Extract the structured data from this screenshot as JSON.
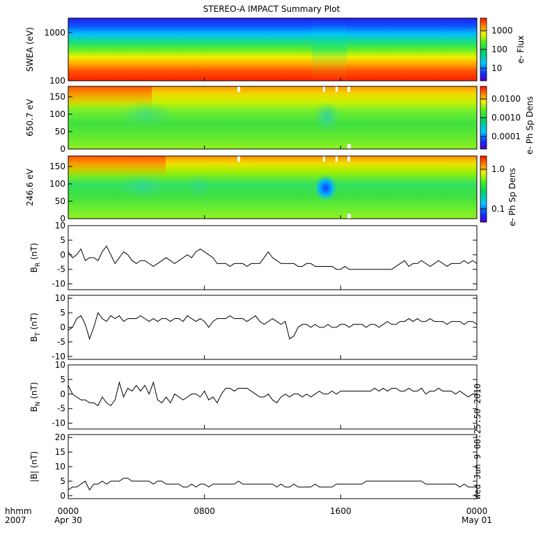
{
  "title": "STEREO-A IMPACT Summary Plot",
  "time_axis": {
    "row_label_1": "hhmm",
    "row_label_2": "2007",
    "ticks": [
      {
        "time": "0000",
        "date": "Apr 30",
        "hour": 0
      },
      {
        "time": "0800",
        "date": "",
        "hour": 8
      },
      {
        "time": "1600",
        "date": "",
        "hour": 16
      },
      {
        "time": "0000",
        "date": "May 01",
        "hour": 24
      }
    ],
    "range_hours": [
      0,
      24
    ]
  },
  "side_stamp": "Wed Jun 9 08:25:50 2010",
  "chart_data": [
    {
      "type": "heatmap",
      "id": "swea",
      "ylabel": "SWEA (eV)",
      "ylim": [
        100,
        2000
      ],
      "yscale": "log",
      "yticks": [
        "1000",
        "100"
      ],
      "colorbar": {
        "label": "e- Flux",
        "scale": "log",
        "ticks": [
          "1000",
          "100",
          "10"
        ]
      }
    },
    {
      "type": "heatmap",
      "id": "pad650",
      "ylabel": "650.7 eV",
      "ylim": [
        0,
        180
      ],
      "yticks": [
        "150",
        "100",
        "50",
        "0"
      ],
      "colorbar": {
        "label": "e- Ph Sp Dens",
        "scale": "log",
        "ticks": [
          "0.0100",
          "0.0010",
          "0.0001"
        ]
      }
    },
    {
      "type": "heatmap",
      "id": "pad246",
      "ylabel": "246.6 eV",
      "ylim": [
        0,
        180
      ],
      "yticks": [
        "150",
        "100",
        "50",
        "0"
      ],
      "colorbar": {
        "label": "e- Ph Sp Dens",
        "scale": "log",
        "ticks": [
          "1.0",
          "0.1"
        ]
      }
    },
    {
      "type": "line",
      "id": "br",
      "ylabel": "B",
      "ylabel_sub": "R",
      "ylabel_unit": "(nT)",
      "ylim": [
        -12,
        10
      ],
      "yticks": [
        "10",
        "5",
        "0",
        "-5",
        "-10"
      ],
      "x": [
        0,
        0.25,
        0.5,
        0.75,
        1,
        1.25,
        1.5,
        1.75,
        2,
        2.25,
        2.5,
        2.75,
        3,
        3.25,
        3.5,
        3.75,
        4,
        4.25,
        4.5,
        4.75,
        5,
        5.25,
        5.5,
        5.75,
        6,
        6.25,
        6.5,
        6.75,
        7,
        7.25,
        7.5,
        7.75,
        8,
        8.25,
        8.5,
        8.75,
        9,
        9.25,
        9.5,
        9.75,
        10,
        10.25,
        10.5,
        10.75,
        11,
        11.25,
        11.5,
        11.75,
        12,
        12.25,
        12.5,
        12.75,
        13,
        13.25,
        13.5,
        13.75,
        14,
        14.25,
        14.5,
        14.75,
        15,
        15.25,
        15.5,
        15.75,
        16,
        16.25,
        16.5,
        16.75,
        17,
        17.25,
        17.5,
        17.75,
        18,
        18.25,
        18.5,
        18.75,
        19,
        19.25,
        19.5,
        19.75,
        20,
        20.25,
        20.5,
        20.75,
        21,
        21.25,
        21.5,
        21.75,
        22,
        22.25,
        22.5,
        22.75,
        23,
        23.25,
        23.5,
        23.75,
        24
      ],
      "values": [
        1,
        -1,
        0,
        2,
        -2,
        -1,
        -1,
        -2,
        1,
        3,
        0,
        -3,
        -1,
        1,
        0,
        -2,
        -3,
        -2,
        -2,
        -3,
        -4,
        -3,
        -2,
        -1,
        -2,
        -3,
        -2,
        -1,
        0,
        -1,
        1,
        2,
        1,
        0,
        -1,
        -3,
        -3,
        -3,
        -4,
        -3,
        -3,
        -3,
        -4,
        -3,
        -3,
        -3,
        -1,
        1,
        -1,
        -2,
        -3,
        -3,
        -3,
        -3,
        -4,
        -4,
        -3,
        -3,
        -4,
        -4,
        -4,
        -4,
        -4,
        -5,
        -5,
        -4,
        -5,
        -5,
        -5,
        -5,
        -5,
        -5,
        -5,
        -5,
        -5,
        -5,
        -5,
        -4,
        -3,
        -2,
        -4,
        -3,
        -3,
        -2,
        -3,
        -4,
        -3,
        -2,
        -3,
        -4,
        -3,
        -3,
        -3,
        -2,
        -3,
        -2,
        -3
      ],
      "zero_line": false
    },
    {
      "type": "line",
      "id": "bt",
      "ylabel": "B",
      "ylabel_sub": "T",
      "ylabel_unit": "(nT)",
      "ylim": [
        -11,
        11
      ],
      "yticks": [
        "10",
        "5",
        "0",
        "-5",
        "-10"
      ],
      "x": [
        0,
        0.25,
        0.5,
        0.75,
        1,
        1.25,
        1.5,
        1.75,
        2,
        2.25,
        2.5,
        2.75,
        3,
        3.25,
        3.5,
        3.75,
        4,
        4.25,
        4.5,
        4.75,
        5,
        5.25,
        5.5,
        5.75,
        6,
        6.25,
        6.5,
        6.75,
        7,
        7.25,
        7.5,
        7.75,
        8,
        8.25,
        8.5,
        8.75,
        9,
        9.25,
        9.5,
        9.75,
        10,
        10.25,
        10.5,
        10.75,
        11,
        11.25,
        11.5,
        11.75,
        12,
        12.25,
        12.5,
        12.75,
        13,
        13.25,
        13.5,
        13.75,
        14,
        14.25,
        14.5,
        14.75,
        15,
        15.25,
        15.5,
        15.75,
        16,
        16.25,
        16.5,
        16.75,
        17,
        17.25,
        17.5,
        17.75,
        18,
        18.25,
        18.5,
        18.75,
        19,
        19.25,
        19.5,
        19.75,
        20,
        20.25,
        20.5,
        20.75,
        21,
        21.25,
        21.5,
        21.75,
        22,
        22.25,
        22.5,
        22.75,
        23,
        23.25,
        23.5,
        23.75,
        24
      ],
      "values": [
        -1,
        0,
        3,
        4,
        1,
        -4,
        0,
        5,
        3,
        2,
        4,
        3,
        4,
        2,
        3,
        3,
        3,
        4,
        3,
        2,
        3,
        2,
        3,
        3,
        2,
        3,
        3,
        2,
        4,
        3,
        2,
        3,
        2,
        0,
        2,
        3,
        3,
        3,
        4,
        3,
        3,
        3,
        2,
        3,
        4,
        2,
        1,
        2,
        3,
        2,
        1,
        2,
        -4,
        -3,
        0,
        1,
        1,
        0,
        1,
        0,
        0,
        1,
        0,
        0,
        1,
        1,
        0,
        1,
        1,
        1,
        0,
        1,
        1,
        0,
        1,
        2,
        1,
        1,
        2,
        2,
        3,
        2,
        3,
        2,
        2,
        3,
        2,
        2,
        2,
        1,
        2,
        2,
        2,
        1,
        2,
        2,
        1
      ],
      "zero_line": false
    },
    {
      "type": "line",
      "id": "bn",
      "ylabel": "B",
      "ylabel_sub": "N",
      "ylabel_unit": "(nT)",
      "ylim": [
        -12,
        10
      ],
      "yticks": [
        "10",
        "5",
        "0",
        "-5",
        "-10"
      ],
      "x": [
        0,
        0.25,
        0.5,
        0.75,
        1,
        1.25,
        1.5,
        1.75,
        2,
        2.25,
        2.5,
        2.75,
        3,
        3.25,
        3.5,
        3.75,
        4,
        4.25,
        4.5,
        4.75,
        5,
        5.25,
        5.5,
        5.75,
        6,
        6.25,
        6.5,
        6.75,
        7,
        7.25,
        7.5,
        7.75,
        8,
        8.25,
        8.5,
        8.75,
        9,
        9.25,
        9.5,
        9.75,
        10,
        10.25,
        10.5,
        10.75,
        11,
        11.25,
        11.5,
        11.75,
        12,
        12.25,
        12.5,
        12.75,
        13,
        13.25,
        13.5,
        13.75,
        14,
        14.25,
        14.5,
        14.75,
        15,
        15.25,
        15.5,
        15.75,
        16,
        16.25,
        16.5,
        16.75,
        17,
        17.25,
        17.5,
        17.75,
        18,
        18.25,
        18.5,
        18.75,
        19,
        19.25,
        19.5,
        19.75,
        20,
        20.25,
        20.5,
        20.75,
        21,
        21.25,
        21.5,
        21.75,
        22,
        22.25,
        22.5,
        22.75,
        23,
        23.25,
        23.5,
        23.75,
        24
      ],
      "values": [
        3,
        0,
        -1,
        -2,
        -2,
        -3,
        -3,
        -4,
        -1,
        -3,
        -4,
        -2,
        4,
        -1,
        2,
        1,
        3,
        1,
        3,
        0,
        4,
        -2,
        -3,
        -1,
        -3,
        0,
        -1,
        -2,
        -1,
        0,
        0,
        -1,
        1,
        -2,
        -1,
        -3,
        0,
        2,
        2,
        1,
        2,
        2,
        2,
        1,
        0,
        -1,
        -1,
        0,
        -2,
        -3,
        -1,
        0,
        -1,
        0,
        0,
        -1,
        0,
        -1,
        0,
        1,
        0,
        0,
        1,
        0,
        1,
        1,
        1,
        1,
        1,
        1,
        1,
        1,
        2,
        1,
        2,
        1,
        2,
        2,
        1,
        1,
        2,
        1,
        1,
        2,
        0,
        1,
        1,
        2,
        1,
        1,
        1,
        0,
        1,
        0,
        -1,
        0,
        0
      ],
      "zero_line": false
    },
    {
      "type": "line",
      "id": "bmag",
      "ylabel": "|B|",
      "ylabel_unit": "(nT)",
      "ylim": [
        -1,
        21
      ],
      "yticks": [
        "20",
        "15",
        "10",
        "5",
        "0"
      ],
      "x": [
        0,
        0.25,
        0.5,
        0.75,
        1,
        1.25,
        1.5,
        1.75,
        2,
        2.25,
        2.5,
        2.75,
        3,
        3.25,
        3.5,
        3.75,
        4,
        4.25,
        4.5,
        4.75,
        5,
        5.25,
        5.5,
        5.75,
        6,
        6.25,
        6.5,
        6.75,
        7,
        7.25,
        7.5,
        7.75,
        8,
        8.25,
        8.5,
        8.75,
        9,
        9.25,
        9.5,
        9.75,
        10,
        10.25,
        10.5,
        10.75,
        11,
        11.25,
        11.5,
        11.75,
        12,
        12.25,
        12.5,
        12.75,
        13,
        13.25,
        13.5,
        13.75,
        14,
        14.25,
        14.5,
        14.75,
        15,
        15.25,
        15.5,
        15.75,
        16,
        16.25,
        16.5,
        16.75,
        17,
        17.25,
        17.5,
        17.75,
        18,
        18.25,
        18.5,
        18.75,
        19,
        19.25,
        19.5,
        19.75,
        20,
        20.25,
        20.5,
        20.75,
        21,
        21.25,
        21.5,
        21.75,
        22,
        22.25,
        22.5,
        22.75,
        23,
        23.25,
        23.5,
        23.75,
        24
      ],
      "values": [
        2,
        3,
        3,
        4,
        5,
        2,
        4,
        4,
        5,
        4,
        5,
        5,
        5,
        6,
        6,
        5,
        5,
        5,
        5,
        5,
        4,
        5,
        5,
        4,
        4,
        4,
        4,
        3,
        3,
        4,
        3,
        4,
        4,
        3,
        4,
        4,
        4,
        4,
        4,
        4,
        5,
        4,
        4,
        4,
        4,
        4,
        4,
        4,
        4,
        3,
        4,
        3,
        3,
        4,
        3,
        3,
        3,
        3,
        4,
        3,
        3,
        3,
        3,
        4,
        4,
        4,
        4,
        4,
        4,
        4,
        5,
        5,
        5,
        5,
        5,
        5,
        5,
        5,
        5,
        5,
        5,
        5,
        5,
        5,
        4,
        4,
        4,
        4,
        4,
        4,
        4,
        4,
        3,
        4,
        3,
        3,
        3
      ],
      "zero_line": false
    }
  ]
}
